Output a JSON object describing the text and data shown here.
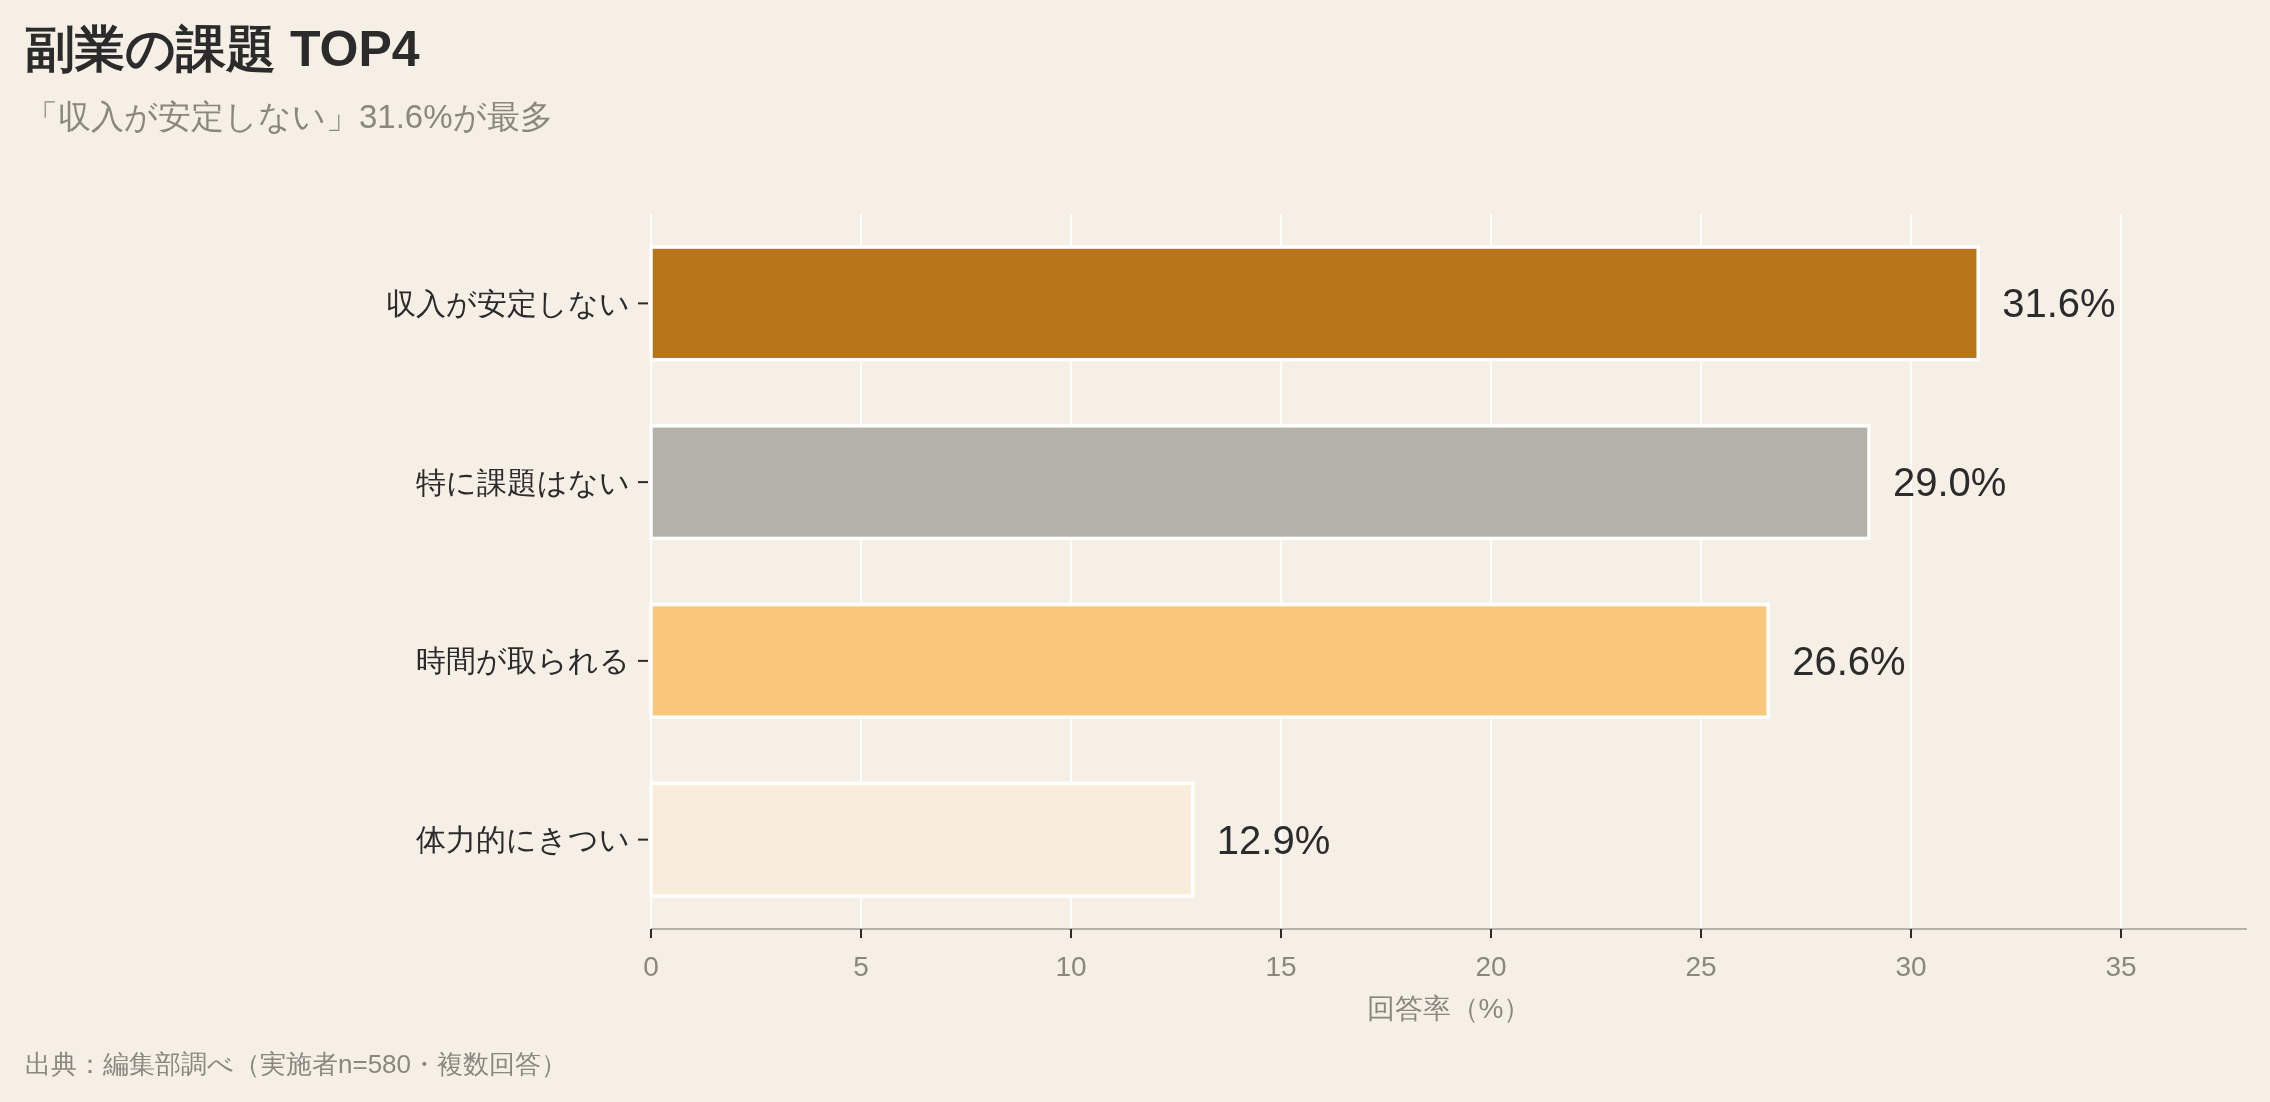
{
  "chart_data": {
    "type": "bar",
    "orientation": "horizontal",
    "title": "副業の課題 TOP4",
    "subtitle": "「収入が安定しない」31.6%が最多",
    "xlabel": "回答率（%）",
    "categories": [
      "収入が安定しない",
      "特に課題はない",
      "時間が取られる",
      "体力的にきつい"
    ],
    "values": [
      31.6,
      29.0,
      26.6,
      12.9
    ],
    "colors": [
      "#b87418",
      "#b5b2aa",
      "#f9c779",
      "#f9ecdb"
    ],
    "value_labels": [
      "31.6%",
      "29.0%",
      "26.6%",
      "12.9%"
    ],
    "xlim": [
      0,
      38
    ],
    "xticks": [
      0,
      5,
      10,
      15,
      20,
      25,
      30,
      35
    ],
    "grid": "x",
    "annotations": [
      "出典：編集部調べ（実施者n=580・複数回答）"
    ]
  }
}
